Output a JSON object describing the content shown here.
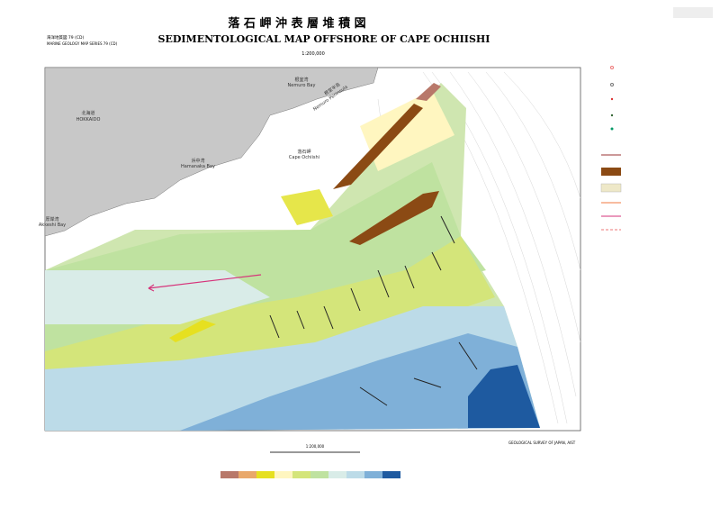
{
  "header": {
    "title_ja": "落 石 岬 沖 表 層 堆 積 図",
    "title_en": "SEDIMENTOLOGICAL MAP OFFSHORE OF CAPE OCHIISHI",
    "scale": "1:200,000",
    "series_ja": "海洋地質図 79 (CD)",
    "series_en": "MARINE GEOLOGY MAP SERIES 79 (CD)"
  },
  "places": [
    {
      "ja": "北海道",
      "en": "HOKKAIDO"
    },
    {
      "ja": "根室湾",
      "en": "Nemuro Bay"
    },
    {
      "ja": "浜中湾",
      "en": "Hamanaka Bay"
    },
    {
      "ja": "厚岸湾",
      "en": "Akkeshi Bay"
    },
    {
      "ja": "根室半島",
      "en": "Nemuro Peninsula"
    },
    {
      "ja": "落石岬",
      "en": "Cape Ochiishi"
    }
  ],
  "footer": {
    "survey": "GEOLOGICAL SURVEY OF JAPAN, AIST",
    "scale_bar": "1:200,000"
  }
}
